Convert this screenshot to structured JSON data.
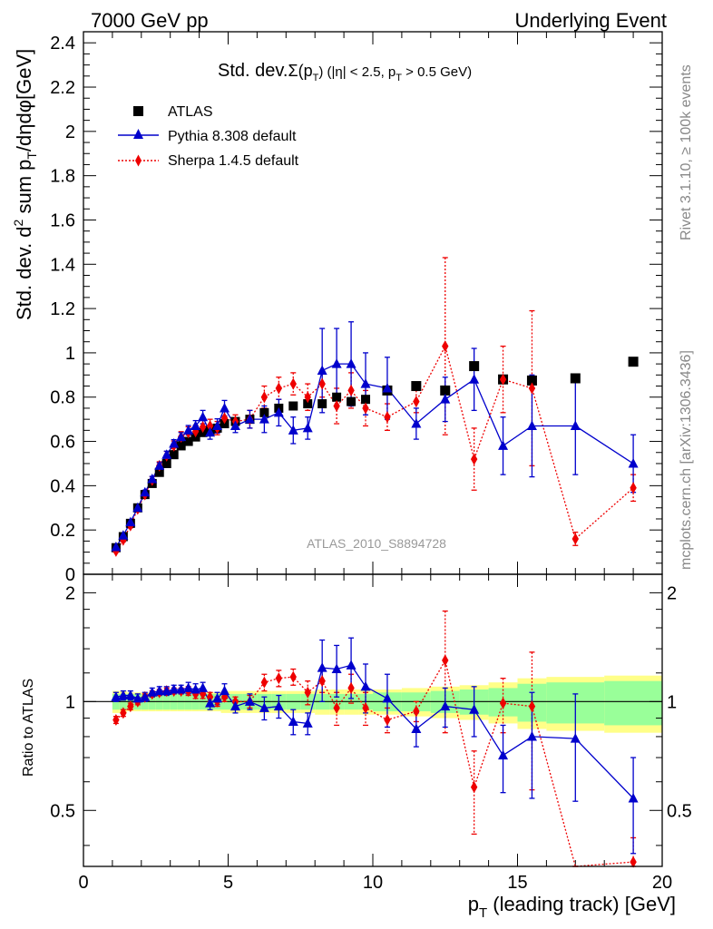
{
  "header": {
    "left": "7000 GeV pp",
    "right": "Underlying Event"
  },
  "plot_title": {
    "main": "Std. dev.",
    "sigma": "Σ(p",
    "sigma_sub": "T",
    "rest1": ") (|η| < 2.5, p",
    "rest_sub": "T",
    "rest2": " > 0.5 GeV)"
  },
  "side_labels": {
    "rivet": "Rivet 3.1.10, ≥ 100k events",
    "mcplots": "mcplots.cern.ch [arXiv:1306.3436]"
  },
  "analysis_id": "ATLAS_2010_S8894728",
  "axes": {
    "ylabel_main_a": "Std. dev. d",
    "ylabel_main_sup": "2",
    "ylabel_main_b": " sum p",
    "ylabel_main_sub": "T",
    "ylabel_main_c": "/dηdφ[GeV]",
    "ylabel_ratio": "Ratio to ATLAS",
    "xlabel_a": "p",
    "xlabel_sub": "T",
    "xlabel_b": " (leading track) [GeV]",
    "main_ylim": [
      0,
      2.45
    ],
    "main_yticks": [
      "0",
      "0.2",
      "0.4",
      "0.6",
      "0.8",
      "1",
      "1.2",
      "1.4",
      "1.6",
      "1.8",
      "2",
      "2.2",
      "2.4"
    ],
    "ratio_yticks": [
      "0.5",
      "1",
      "2"
    ],
    "xlim": [
      0,
      20
    ],
    "xticks": [
      "0",
      "5",
      "10",
      "15",
      "20"
    ]
  },
  "legend": {
    "atlas": "ATLAS",
    "pythia": "Pythia 8.308 default",
    "sherpa": "Sherpa 1.4.5 default"
  },
  "colors": {
    "atlas": "#000000",
    "pythia": "#0000cc",
    "sherpa": "#ee0000",
    "band_inner": "#99ff99",
    "band_outer": "#ffff88"
  },
  "chart_data": {
    "type": "scatter",
    "x_edges": [
      1.0,
      1.25,
      1.5,
      1.75,
      2.0,
      2.25,
      2.5,
      2.75,
      3.0,
      3.25,
      3.5,
      3.75,
      4.0,
      4.25,
      4.5,
      4.75,
      5.0,
      5.5,
      6.0,
      6.5,
      7.0,
      7.5,
      8.0,
      8.5,
      9.0,
      9.5,
      10.0,
      11.0,
      12.0,
      13.0,
      14.0,
      15.0,
      16.0,
      18.0,
      20.0
    ],
    "x": [
      1.125,
      1.375,
      1.625,
      1.875,
      2.125,
      2.375,
      2.625,
      2.875,
      3.125,
      3.375,
      3.625,
      3.875,
      4.125,
      4.375,
      4.625,
      4.875,
      5.25,
      5.75,
      6.25,
      6.75,
      7.25,
      7.75,
      8.25,
      8.75,
      9.25,
      9.75,
      10.5,
      11.5,
      12.5,
      13.5,
      14.5,
      15.5,
      17.0,
      19.0
    ],
    "series": [
      {
        "name": "ATLAS",
        "values": [
          0.12,
          0.17,
          0.23,
          0.3,
          0.36,
          0.41,
          0.46,
          0.5,
          0.54,
          0.58,
          0.6,
          0.62,
          0.64,
          0.65,
          0.66,
          0.68,
          0.69,
          0.7,
          0.73,
          0.75,
          0.76,
          0.77,
          0.77,
          0.8,
          0.78,
          0.79,
          0.83,
          0.85,
          0.83,
          0.94,
          0.88,
          0.875,
          0.885,
          0.96
        ],
        "errors": [
          0.005,
          0.005,
          0.006,
          0.006,
          0.007,
          0.007,
          0.008,
          0.008,
          0.009,
          0.009,
          0.01,
          0.01,
          0.01,
          0.01,
          0.011,
          0.011,
          0.012,
          0.013,
          0.014,
          0.015,
          0.016,
          0.017,
          0.018,
          0.019,
          0.02,
          0.021,
          0.022,
          0.024,
          0.026,
          0.028,
          0.03,
          0.032,
          0.035,
          0.04
        ]
      },
      {
        "name": "Pythia 8.308 default",
        "values": [
          0.123,
          0.175,
          0.235,
          0.3,
          0.37,
          0.43,
          0.49,
          0.54,
          0.59,
          0.62,
          0.65,
          0.67,
          0.71,
          0.64,
          0.67,
          0.75,
          0.67,
          0.7,
          0.7,
          0.73,
          0.65,
          0.66,
          0.92,
          0.95,
          0.95,
          0.86,
          0.84,
          0.68,
          0.79,
          0.88,
          0.58,
          0.67,
          0.67,
          0.5
        ],
        "errors": [
          0.006,
          0.006,
          0.008,
          0.01,
          0.01,
          0.012,
          0.014,
          0.016,
          0.018,
          0.02,
          0.022,
          0.024,
          0.03,
          0.03,
          0.032,
          0.035,
          0.03,
          0.04,
          0.06,
          0.06,
          0.06,
          0.05,
          0.19,
          0.16,
          0.19,
          0.14,
          0.14,
          0.07,
          0.1,
          0.14,
          0.13,
          0.23,
          0.22,
          0.13
        ]
      },
      {
        "name": "Sherpa 1.4.5 default",
        "values": [
          0.105,
          0.155,
          0.22,
          0.295,
          0.36,
          0.425,
          0.49,
          0.535,
          0.58,
          0.62,
          0.64,
          0.645,
          0.665,
          0.67,
          0.66,
          0.705,
          0.69,
          0.7,
          0.8,
          0.84,
          0.86,
          0.8,
          0.86,
          0.76,
          0.83,
          0.75,
          0.71,
          0.78,
          1.03,
          0.52,
          0.88,
          0.84,
          0.16,
          0.39
        ],
        "errors": [
          0.006,
          0.008,
          0.01,
          0.012,
          0.014,
          0.016,
          0.018,
          0.02,
          0.022,
          0.024,
          0.026,
          0.028,
          0.03,
          0.03,
          0.03,
          0.035,
          0.03,
          0.04,
          0.05,
          0.05,
          0.05,
          0.06,
          0.06,
          0.08,
          0.08,
          0.08,
          0.06,
          0.05,
          0.4,
          0.14,
          0.15,
          0.35,
          0.03,
          0.06
        ]
      }
    ],
    "ratio": {
      "pythia": [
        1.03,
        1.04,
        1.04,
        1.02,
        1.03,
        1.06,
        1.07,
        1.07,
        1.08,
        1.08,
        1.09,
        1.08,
        1.09,
        0.99,
        1.02,
        1.07,
        0.97,
        1.0,
        0.96,
        0.97,
        0.88,
        0.87,
        1.24,
        1.23,
        1.26,
        1.1,
        1.02,
        0.84,
        0.97,
        0.95,
        0.71,
        0.8,
        0.79,
        0.54
      ],
      "pythia_err": [
        0.03,
        0.03,
        0.03,
        0.03,
        0.03,
        0.03,
        0.03,
        0.03,
        0.03,
        0.03,
        0.04,
        0.04,
        0.04,
        0.04,
        0.04,
        0.05,
        0.04,
        0.05,
        0.07,
        0.07,
        0.07,
        0.06,
        0.24,
        0.2,
        0.24,
        0.17,
        0.17,
        0.09,
        0.12,
        0.15,
        0.15,
        0.26,
        0.26,
        0.16
      ],
      "sherpa": [
        0.89,
        0.93,
        0.97,
        1.0,
        1.03,
        1.05,
        1.06,
        1.07,
        1.07,
        1.07,
        1.07,
        1.05,
        1.05,
        1.03,
        1.0,
        1.03,
        1.0,
        1.0,
        1.13,
        1.16,
        1.17,
        1.06,
        1.14,
        0.96,
        1.09,
        0.96,
        0.89,
        0.94,
        1.3,
        0.58,
        0.99,
        0.97,
        0.21,
        0.36
      ],
      "sherpa_err": [
        0.02,
        0.02,
        0.02,
        0.02,
        0.02,
        0.02,
        0.02,
        0.02,
        0.02,
        0.02,
        0.03,
        0.03,
        0.03,
        0.03,
        0.03,
        0.03,
        0.03,
        0.04,
        0.06,
        0.06,
        0.06,
        0.08,
        0.08,
        0.1,
        0.1,
        0.1,
        0.07,
        0.06,
        0.48,
        0.15,
        0.17,
        0.4,
        0.04,
        0.06
      ],
      "band_inner": [
        0.05,
        0.05,
        0.05,
        0.05,
        0.05,
        0.05,
        0.05,
        0.05,
        0.05,
        0.05,
        0.05,
        0.05,
        0.05,
        0.05,
        0.05,
        0.05,
        0.05,
        0.05,
        0.05,
        0.05,
        0.05,
        0.05,
        0.05,
        0.05,
        0.05,
        0.05,
        0.06,
        0.06,
        0.07,
        0.08,
        0.09,
        0.12,
        0.13,
        0.14
      ],
      "band_outer": [
        0.07,
        0.07,
        0.06,
        0.06,
        0.06,
        0.06,
        0.06,
        0.06,
        0.06,
        0.06,
        0.06,
        0.06,
        0.06,
        0.06,
        0.06,
        0.07,
        0.07,
        0.07,
        0.07,
        0.07,
        0.07,
        0.07,
        0.08,
        0.08,
        0.08,
        0.08,
        0.08,
        0.09,
        0.1,
        0.11,
        0.13,
        0.16,
        0.17,
        0.18
      ]
    },
    "xlabel": "p_T (leading track) [GeV]",
    "ylabel": "Std. dev. d^2 sum p_T/dηdφ[GeV]",
    "xlim": [
      0,
      20
    ],
    "ylim": [
      0,
      2.45
    ],
    "ratio_ylim": [
      0.35,
      2.25
    ],
    "ratio_scale": "log",
    "legend_position": "top-left"
  }
}
